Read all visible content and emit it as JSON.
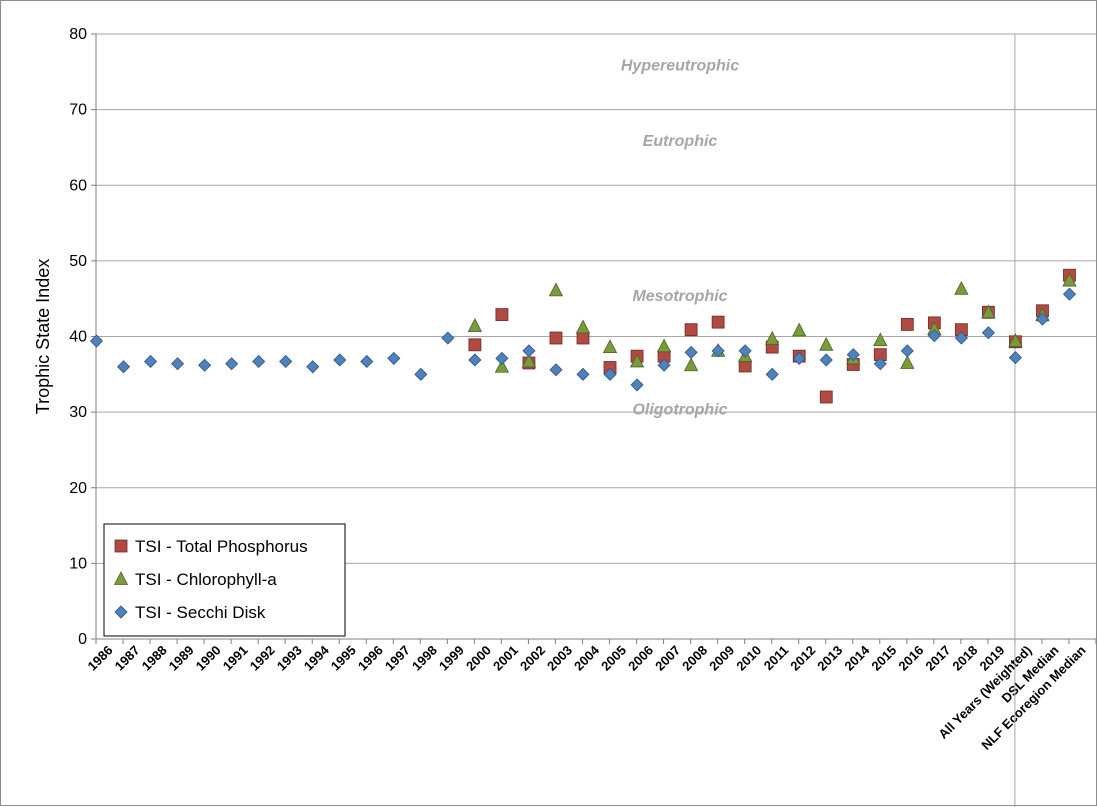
{
  "chart_data": {
    "type": "scatter",
    "ylabel": "Trophic State Index",
    "ylim": [
      0,
      80
    ],
    "yticks": [
      0,
      10,
      20,
      30,
      40,
      50,
      60,
      70,
      80
    ],
    "grid": "horizontal",
    "legend_position": "bottom-left",
    "separator_after_category": "2019",
    "categories": [
      "1986",
      "1987",
      "1988",
      "1989",
      "1990",
      "1991",
      "1992",
      "1993",
      "1994",
      "1995",
      "1996",
      "1997",
      "1998",
      "1999",
      "2000",
      "2001",
      "2002",
      "2003",
      "2004",
      "2005",
      "2006",
      "2007",
      "2008",
      "2009",
      "2010",
      "2011",
      "2012",
      "2013",
      "2014",
      "2015",
      "2016",
      "2017",
      "2018",
      "2019",
      "All Years (Weighted)",
      "DSL Median",
      "NLF Ecoregion Median"
    ],
    "zones": [
      {
        "label": "Hypereutrophic",
        "y": 76
      },
      {
        "label": "Eutrophic",
        "y": 66
      },
      {
        "label": "Mesotrophic",
        "y": 45.5
      },
      {
        "label": "Oligotrophic",
        "y": 30.5
      }
    ],
    "series": [
      {
        "name": "TSI - Total Phosphorus",
        "marker": "square",
        "color": "#b04a42",
        "values": [
          null,
          null,
          null,
          null,
          null,
          null,
          null,
          null,
          null,
          null,
          null,
          null,
          null,
          null,
          38.9,
          42.9,
          36.5,
          39.8,
          39.8,
          35.9,
          37.4,
          37.4,
          40.9,
          41.9,
          36.1,
          38.6,
          37.4,
          32.0,
          36.3,
          37.6,
          41.6,
          41.8,
          40.9,
          43.2,
          39.3,
          43.4,
          48.1
        ]
      },
      {
        "name": "TSI - Chlorophyll-a",
        "marker": "triangle",
        "color": "#7a9a3c",
        "values": [
          null,
          null,
          null,
          null,
          null,
          null,
          null,
          null,
          null,
          null,
          null,
          null,
          null,
          null,
          41.4,
          36.0,
          36.7,
          46.1,
          41.2,
          38.6,
          36.7,
          38.7,
          36.2,
          38.1,
          37.4,
          39.7,
          40.8,
          38.9,
          37.1,
          39.5,
          36.5,
          41.0,
          46.3,
          43.2,
          39.4,
          42.8,
          47.4
        ]
      },
      {
        "name": "TSI - Secchi Disk",
        "marker": "diamond",
        "color": "#4f81bd",
        "values": [
          39.4,
          36.0,
          36.7,
          36.4,
          36.2,
          36.4,
          36.7,
          36.7,
          36.0,
          36.9,
          36.7,
          37.1,
          35.0,
          39.8,
          36.9,
          37.1,
          38.1,
          35.6,
          35.0,
          35.0,
          33.6,
          36.2,
          37.9,
          38.1,
          38.1,
          35.0,
          37.1,
          36.9,
          37.6,
          36.4,
          38.1,
          40.1,
          39.8,
          40.5,
          37.2,
          42.3,
          45.6
        ]
      }
    ]
  }
}
